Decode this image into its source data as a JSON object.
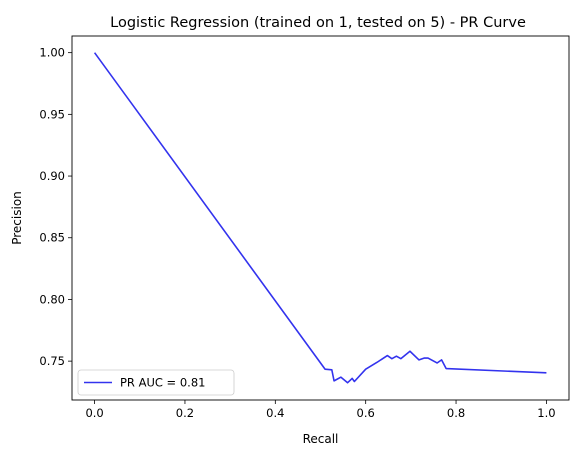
{
  "chart_data": {
    "type": "line",
    "title": "Logistic Regression (trained on 1, tested on 5) -  PR Curve",
    "xlabel": "Recall",
    "ylabel": "Precision",
    "xlim": [
      -0.05,
      1.05
    ],
    "ylim": [
      0.7185,
      1.0135
    ],
    "xticks": [
      0.0,
      0.2,
      0.4,
      0.6,
      0.8,
      1.0
    ],
    "xtick_labels": [
      "0.0",
      "0.2",
      "0.4",
      "0.6",
      "0.8",
      "1.0"
    ],
    "yticks": [
      0.75,
      0.8,
      0.85,
      0.9,
      0.95,
      1.0
    ],
    "ytick_labels": [
      "0.75",
      "0.80",
      "0.85",
      "0.90",
      "0.95",
      "1.00"
    ],
    "grid": false,
    "legend": {
      "position": "lower-left"
    },
    "series": [
      {
        "name": "PR AUC = 0.81",
        "color": "#3333ee",
        "x": [
          0.0,
          0.51,
          0.525,
          0.53,
          0.545,
          0.56,
          0.57,
          0.575,
          0.6,
          0.625,
          0.648,
          0.658,
          0.668,
          0.678,
          0.698,
          0.718,
          0.73,
          0.738,
          0.758,
          0.768,
          0.778,
          1.0
        ],
        "y": [
          1.0,
          0.7435,
          0.743,
          0.734,
          0.737,
          0.7325,
          0.736,
          0.7335,
          0.7435,
          0.749,
          0.7545,
          0.752,
          0.754,
          0.752,
          0.758,
          0.751,
          0.7525,
          0.7525,
          0.7485,
          0.751,
          0.744,
          0.7405
        ]
      }
    ]
  }
}
